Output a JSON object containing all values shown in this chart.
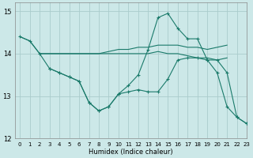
{
  "xlabel": "Humidex (Indice chaleur)",
  "bg_color": "#cce8e8",
  "grid_color": "#aacccc",
  "line_color": "#1a7a6a",
  "xlim": [
    -0.5,
    23
  ],
  "ylim": [
    12,
    15.2
  ],
  "yticks": [
    12,
    13,
    14,
    15
  ],
  "xticks": [
    0,
    1,
    2,
    3,
    4,
    5,
    6,
    7,
    8,
    9,
    10,
    11,
    12,
    13,
    14,
    15,
    16,
    17,
    18,
    19,
    20,
    21,
    22,
    23
  ],
  "lines": [
    {
      "x": [
        0,
        1,
        2,
        3,
        4,
        5,
        6,
        7,
        8,
        9,
        10,
        11,
        12,
        13,
        14,
        15,
        16,
        17,
        18,
        19,
        20,
        21
      ],
      "y": [
        14.4,
        14.3,
        14.0,
        14.0,
        14.0,
        14.0,
        14.0,
        14.0,
        14.0,
        14.05,
        14.1,
        14.1,
        14.15,
        14.15,
        14.2,
        14.2,
        14.2,
        14.15,
        14.15,
        14.1,
        14.15,
        14.2
      ],
      "marker": false
    },
    {
      "x": [
        2,
        3,
        4,
        5,
        6,
        7,
        8,
        9,
        10,
        11,
        12,
        13,
        14,
        15,
        16,
        17,
        18,
        19,
        20,
        21
      ],
      "y": [
        14.0,
        14.0,
        14.0,
        14.0,
        14.0,
        14.0,
        14.0,
        14.0,
        14.0,
        14.0,
        14.0,
        14.0,
        14.05,
        14.0,
        14.0,
        13.95,
        13.9,
        13.9,
        13.85,
        13.9
      ],
      "marker": false
    },
    {
      "x": [
        0,
        1,
        2,
        3,
        4,
        5,
        6,
        7,
        8,
        9,
        10,
        11,
        12,
        13,
        14,
        15,
        16,
        17,
        18,
        19,
        20,
        21,
        22,
        23
      ],
      "y": [
        14.4,
        14.3,
        14.0,
        13.65,
        13.55,
        13.45,
        13.35,
        12.85,
        12.65,
        12.75,
        13.05,
        13.25,
        13.5,
        14.1,
        14.85,
        14.95,
        14.6,
        14.35,
        14.35,
        13.85,
        13.55,
        12.75,
        12.5,
        12.35
      ],
      "marker": true
    },
    {
      "x": [
        3,
        4,
        5,
        6,
        7,
        8,
        9,
        10,
        11,
        12,
        13,
        14,
        15,
        16,
        17,
        18,
        19,
        20,
        21,
        22,
        23
      ],
      "y": [
        13.65,
        13.55,
        13.45,
        13.35,
        12.85,
        12.65,
        12.75,
        13.05,
        13.1,
        13.15,
        13.1,
        13.1,
        13.4,
        13.85,
        13.9,
        13.9,
        13.85,
        13.85,
        13.55,
        12.5,
        12.35
      ],
      "marker": true
    }
  ]
}
